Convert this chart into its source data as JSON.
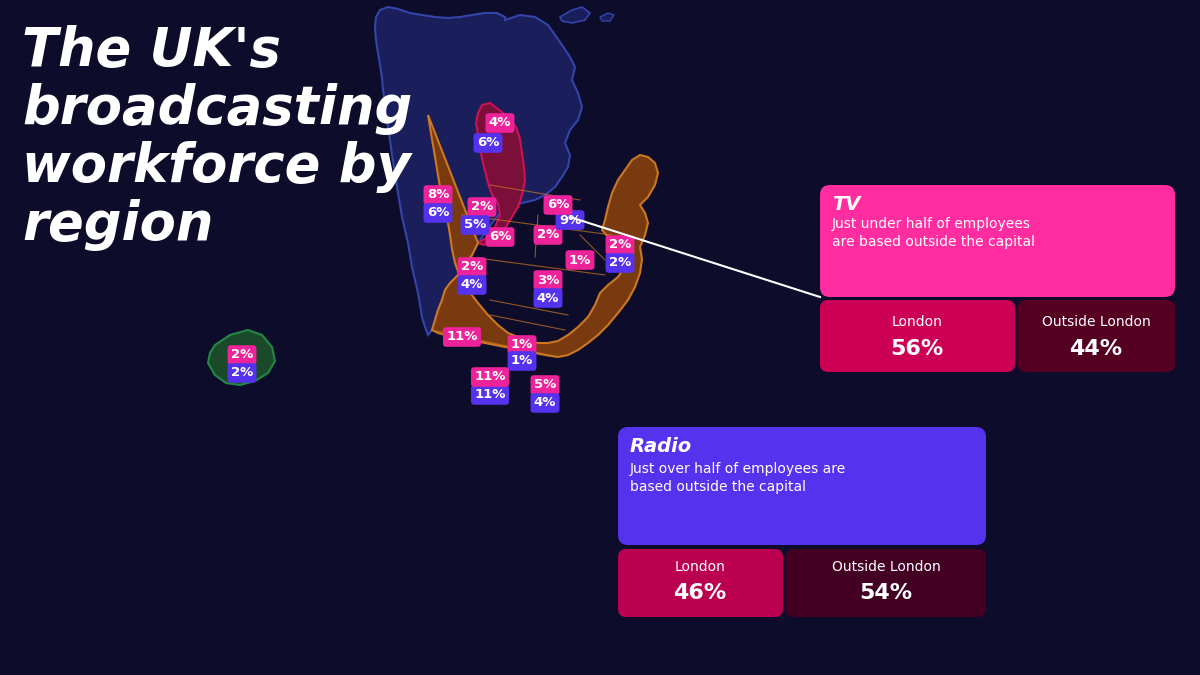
{
  "background_color": "#0d0d2b",
  "title": "The UK's\nbroadcasting\nworkforce by\nregion",
  "title_color": "#ffffff",
  "title_fontsize": 38,
  "tv_box_color": "#ff2da0",
  "tv_london_color": "#cc0055",
  "tv_outside_color": "#550022",
  "tv_title": "TV",
  "tv_subtitle": "Just under half of employees\nare based outside the capital",
  "tv_london_pct": "56%",
  "tv_outside_pct": "44%",
  "radio_box_color": "#5533ee",
  "radio_london_color": "#bb0050",
  "radio_outside_color": "#440022",
  "radio_title": "Radio",
  "radio_subtitle": "Just over half of employees are\nbased outside the capital",
  "radio_london_pct": "46%",
  "radio_outside_pct": "54%",
  "tv_color": "#ee2299",
  "radio_color": "#5533ee",
  "scotland_fill": "#1a1e5a",
  "scotland_border": "#3344aa",
  "wales_fill": "#7a0f3a",
  "wales_border": "#cc1155",
  "england_fill": "#7a3a10",
  "england_border": "#cc7722",
  "ni_fill": "#1a4a2a",
  "ni_border": "#228844"
}
